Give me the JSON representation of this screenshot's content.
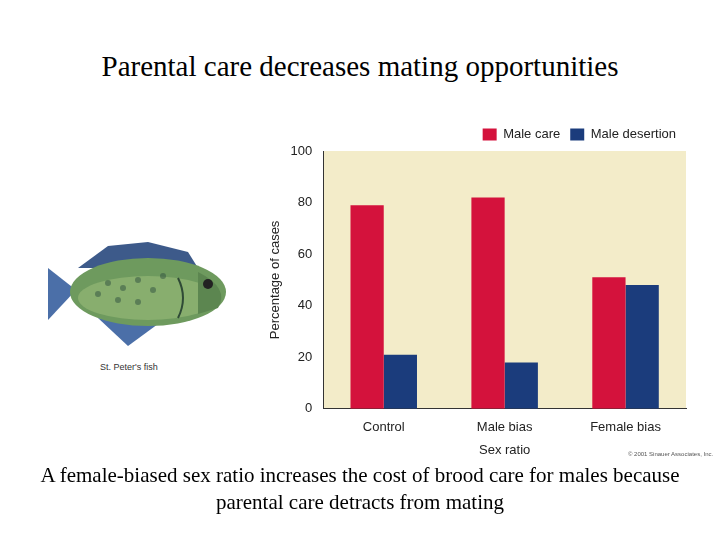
{
  "slide": {
    "title": "Parental care decreases mating opportunities",
    "caption": "A female-biased sex ratio increases the cost of brood care for males because parental care detracts from mating",
    "image_label": "St. Peter's fish",
    "credit": "© 2001 Sinauer Associates, Inc."
  },
  "chart_data": {
    "type": "bar",
    "x_label": "Sex ratio",
    "y_label": "Percentage of cases",
    "categories": [
      "Control",
      "Male bias",
      "Female bias"
    ],
    "series": [
      {
        "name": "Male care",
        "color": "#d4123c",
        "values": [
          79,
          82,
          51
        ]
      },
      {
        "name": "Male desertion",
        "color": "#1b3c7c",
        "values": [
          21,
          18,
          48
        ]
      }
    ],
    "ylim": [
      0,
      100
    ],
    "yticks": [
      0,
      20,
      40,
      60,
      80,
      100
    ],
    "grid": false,
    "legend": "upper right"
  }
}
